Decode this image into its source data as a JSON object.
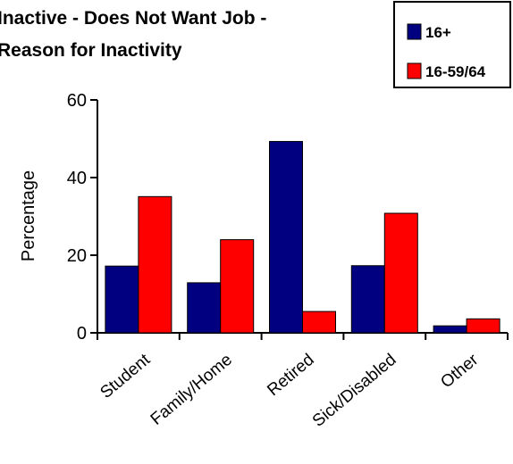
{
  "chart_data": {
    "type": "bar",
    "title_lines": [
      "Inactive - Does Not Want Job -",
      "Reason for Inactivity"
    ],
    "ylabel": "Percentage",
    "xlabel": "",
    "ylim": [
      0,
      60
    ],
    "yticks": [
      0,
      20,
      40,
      60
    ],
    "categories": [
      "Student",
      "Family/Home",
      "Retired",
      "Sick/Disabled",
      "Other"
    ],
    "series": [
      {
        "name": "16+",
        "color": "#000080",
        "values": [
          17.2,
          12.9,
          49.3,
          17.3,
          1.8
        ]
      },
      {
        "name": "16-59/64",
        "color": "#ff0000",
        "values": [
          35.1,
          24.0,
          5.5,
          30.8,
          3.6
        ]
      }
    ],
    "legend_position": "top-right",
    "grid": false
  }
}
